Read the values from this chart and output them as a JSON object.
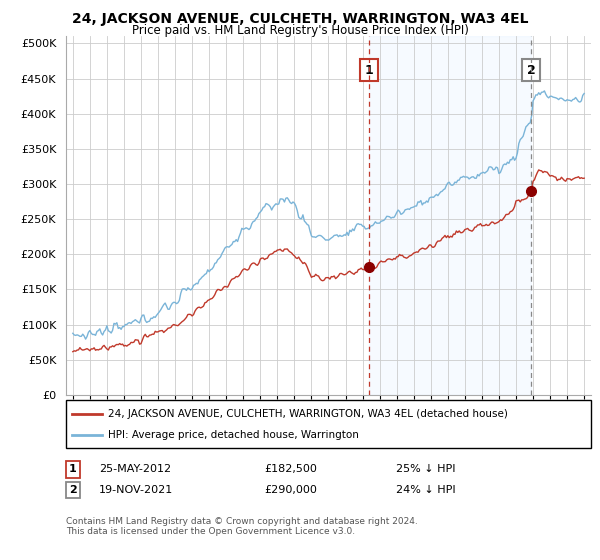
{
  "title": "24, JACKSON AVENUE, CULCHETH, WARRINGTON, WA3 4EL",
  "subtitle": "Price paid vs. HM Land Registry's House Price Index (HPI)",
  "legend_line1": "24, JACKSON AVENUE, CULCHETH, WARRINGTON, WA3 4EL (detached house)",
  "legend_line2": "HPI: Average price, detached house, Warrington",
  "footnote": "Contains HM Land Registry data © Crown copyright and database right 2024.\nThis data is licensed under the Open Government Licence v3.0.",
  "annotation1_label": "1",
  "annotation1_date": "25-MAY-2012",
  "annotation1_price": "£182,500",
  "annotation1_pct": "25% ↓ HPI",
  "annotation2_label": "2",
  "annotation2_date": "19-NOV-2021",
  "annotation2_price": "£290,000",
  "annotation2_pct": "24% ↓ HPI",
  "hpi_color": "#7ab4d8",
  "price_color": "#c0392b",
  "marker_color": "#8b0000",
  "vline1_color": "#c0392b",
  "vline2_color": "#888888",
  "shade_color": "#ddeeff",
  "background_color": "#ffffff",
  "grid_color": "#cccccc",
  "ylim": [
    0,
    510000
  ],
  "yticks": [
    0,
    50000,
    100000,
    150000,
    200000,
    250000,
    300000,
    350000,
    400000,
    450000,
    500000
  ],
  "sale1_year": 2012.38,
  "sale1_price": 182500,
  "sale2_year": 2021.88,
  "sale2_price": 290000,
  "xmin": 1994.6,
  "xmax": 2025.4
}
